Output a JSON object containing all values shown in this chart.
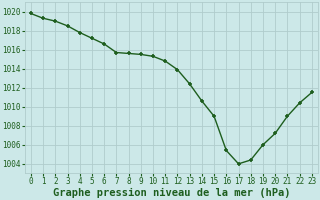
{
  "x": [
    0,
    1,
    2,
    3,
    4,
    5,
    6,
    7,
    8,
    9,
    10,
    11,
    12,
    13,
    14,
    15,
    16,
    17,
    18,
    19,
    20,
    21,
    22,
    23
  ],
  "y": [
    1019.8,
    1019.3,
    1019.0,
    1018.5,
    1017.8,
    1017.2,
    1016.6,
    1015.7,
    1015.6,
    1015.5,
    1015.3,
    1014.8,
    1013.9,
    1012.4,
    1010.6,
    1009.0,
    1005.4,
    1004.0,
    1004.4,
    1006.0,
    1007.2,
    1009.0,
    1010.4,
    1011.5
  ],
  "line_color": "#1e5e1e",
  "marker_color": "#1e5e1e",
  "bg_color": "#cce8e8",
  "grid_color": "#b0cccc",
  "xlabel": "Graphe pression niveau de la mer (hPa)",
  "xlabel_color": "#1e5e1e",
  "ylim": [
    1003.0,
    1021.0
  ],
  "yticks": [
    1004,
    1006,
    1008,
    1010,
    1012,
    1014,
    1016,
    1018,
    1020
  ],
  "xticks": [
    0,
    1,
    2,
    3,
    4,
    5,
    6,
    7,
    8,
    9,
    10,
    11,
    12,
    13,
    14,
    15,
    16,
    17,
    18,
    19,
    20,
    21,
    22,
    23
  ],
  "tick_color": "#1e5e1e",
  "tick_fontsize": 5.5,
  "xlabel_fontsize": 7.5,
  "line_width": 1.0,
  "marker_size": 3.5
}
